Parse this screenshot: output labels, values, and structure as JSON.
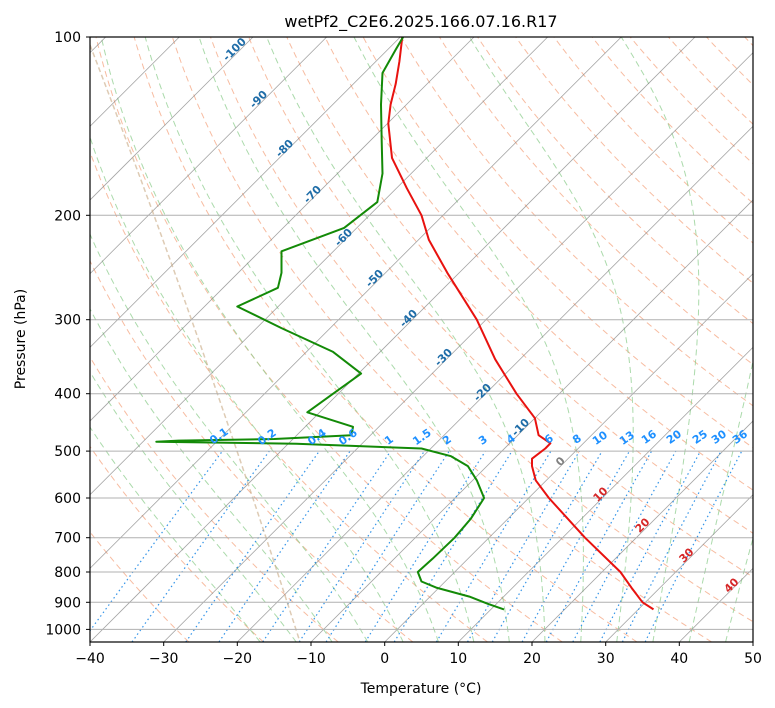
{
  "chart_data": {
    "type": "line",
    "title": "wetPf2_C2E6.2025.166.07.16.R17",
    "xlabel": "Temperature (°C)",
    "ylabel": "Pressure (hPa)",
    "xlim": [
      -40,
      50
    ],
    "ylim": [
      1050,
      100
    ],
    "y_scale": "log",
    "x_ticks": [
      "−40",
      "−30",
      "−20",
      "−10",
      "0",
      "10",
      "20",
      "30",
      "40",
      "50"
    ],
    "y_ticks": [
      "100",
      "200",
      "300",
      "400",
      "500",
      "600",
      "700",
      "800",
      "900",
      "1000"
    ],
    "x_tick_values": [
      -40,
      -30,
      -20,
      -10,
      0,
      10,
      20,
      30,
      40,
      50
    ],
    "y_tick_values": [
      100,
      200,
      300,
      400,
      500,
      600,
      700,
      800,
      900,
      1000
    ],
    "grid": true,
    "series": [
      {
        "color": "#e8120f",
        "pressure": [
          925,
          900,
          850,
          800,
          700,
          600,
          560,
          530,
          515,
          495,
          485,
          470,
          440,
          400,
          350,
          300,
          250,
          220,
          200,
          180,
          160,
          140,
          130,
          120,
          110,
          100
        ],
        "x_skewed": [
          36.5,
          35.0,
          33.5,
          32.0,
          27.2,
          22.3,
          20.5,
          20.0,
          20.0,
          21.8,
          22.5,
          20.9,
          20.4,
          17.9,
          15.0,
          12.5,
          8.5,
          6.0,
          5.0,
          3.0,
          1.0,
          0.5,
          0.8,
          1.5,
          2.0,
          2.4
        ]
      },
      {
        "color": "#138a07",
        "pressure": [
          925,
          905,
          880,
          850,
          830,
          800,
          760,
          700,
          650,
          600,
          560,
          530,
          510,
          495,
          486,
          482,
          480,
          477,
          470,
          455,
          430,
          400,
          370,
          340,
          310,
          285,
          265,
          250,
          230,
          210,
          190,
          170,
          150,
          130,
          115,
          105,
          100
        ],
        "x_skewed": [
          16.2,
          14.0,
          11.5,
          7.0,
          5.0,
          4.5,
          6.5,
          9.5,
          11.7,
          13.5,
          12.5,
          11.3,
          9.0,
          5.0,
          -12.0,
          -31.0,
          -28.0,
          -15.0,
          -4.5,
          -4.3,
          -10.5,
          -7.0,
          -3.2,
          -7.0,
          -14.0,
          -20.0,
          -14.5,
          -14.0,
          -14.0,
          -5.5,
          -1.0,
          -0.3,
          -0.4,
          -0.5,
          -0.3,
          1.5,
          2.5
        ]
      }
    ],
    "annotations": [
      {
        "text": "-100",
        "color": "#1f6da8"
      },
      {
        "text": "-90",
        "color": "#1f6da8"
      },
      {
        "text": "-80",
        "color": "#1f6da8"
      },
      {
        "text": "-70",
        "color": "#1f6da8"
      },
      {
        "text": "-60",
        "color": "#1f6da8"
      },
      {
        "text": "-50",
        "color": "#1f6da8"
      },
      {
        "text": "-40",
        "color": "#1f6da8"
      },
      {
        "text": "-30",
        "color": "#1f6da8"
      },
      {
        "text": "-20",
        "color": "#1f6da8"
      },
      {
        "text": "-10",
        "color": "#1f6da8"
      },
      {
        "text": "0",
        "color": "#808080"
      },
      {
        "text": "10",
        "color": "#d62728"
      },
      {
        "text": "20",
        "color": "#d62728"
      },
      {
        "text": "30",
        "color": "#d62728"
      },
      {
        "text": "40",
        "color": "#d62728"
      },
      {
        "text": "0.1",
        "color": "#1e90ff"
      },
      {
        "text": "0.2",
        "color": "#1e90ff"
      },
      {
        "text": "0.4",
        "color": "#1e90ff"
      },
      {
        "text": "0.6",
        "color": "#1e90ff"
      },
      {
        "text": "1",
        "color": "#1e90ff"
      },
      {
        "text": "1.5",
        "color": "#1e90ff"
      },
      {
        "text": "2",
        "color": "#1e90ff"
      },
      {
        "text": "3",
        "color": "#1e90ff"
      },
      {
        "text": "4",
        "color": "#1e90ff"
      },
      {
        "text": "6",
        "color": "#1e90ff"
      },
      {
        "text": "8",
        "color": "#1e90ff"
      },
      {
        "text": "10",
        "color": "#1e90ff"
      },
      {
        "text": "13",
        "color": "#1e90ff"
      },
      {
        "text": "16",
        "color": "#1e90ff"
      },
      {
        "text": "20",
        "color": "#1e90ff"
      },
      {
        "text": "25",
        "color": "#1e90ff"
      },
      {
        "text": "30",
        "color": "#1e90ff"
      },
      {
        "text": "36",
        "color": "#1e90ff"
      }
    ],
    "background_lines": {
      "isotherm_color": "#7f7f7f",
      "dry_adiabat_color": "#f4a582",
      "moist_adiabat_color": "#8fce8f",
      "mixing_ratio_color": "#1e88e5",
      "lcl_curve_color": "#c8a882"
    }
  }
}
